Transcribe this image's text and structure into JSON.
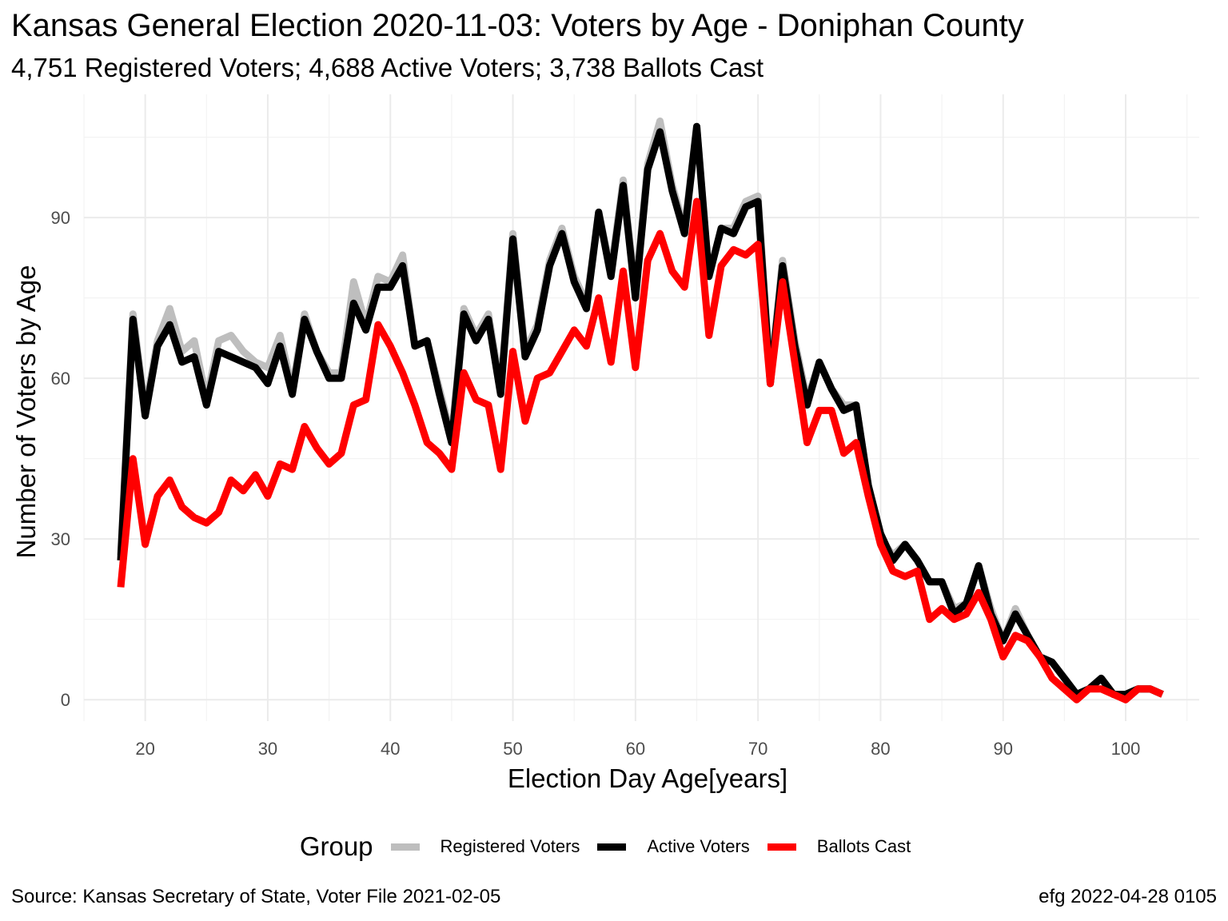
{
  "title": "Kansas General Election 2020-11-03:  Voters by Age - Doniphan County",
  "subtitle": "4,751 Registered Voters; 4,688 Active Voters; 3,738 Ballots Cast",
  "footer": {
    "source": "Source:  Kansas Secretary of State, Voter File  2021-02-05",
    "credit": "efg 2022-04-28 0105"
  },
  "legend": {
    "title": "Group",
    "items": [
      {
        "label": "Registered Voters",
        "color": "#bebebe"
      },
      {
        "label": "Active Voters",
        "color": "#000000"
      },
      {
        "label": "Ballots Cast",
        "color": "#ff0000"
      }
    ]
  },
  "chart_data": {
    "type": "line",
    "xlabel": "Election Day Age[years]",
    "ylabel": "Number of Voters by Age",
    "xlim": [
      15,
      106
    ],
    "ylim": [
      -4,
      113
    ],
    "xticks": [
      20,
      30,
      40,
      50,
      60,
      70,
      80,
      90,
      100
    ],
    "yticks": [
      0,
      30,
      60,
      90
    ],
    "grid": true,
    "legend_position": "bottom",
    "x": [
      18,
      19,
      20,
      21,
      22,
      23,
      24,
      25,
      26,
      27,
      28,
      29,
      30,
      31,
      32,
      33,
      34,
      35,
      36,
      37,
      38,
      39,
      40,
      41,
      42,
      43,
      44,
      45,
      46,
      47,
      48,
      49,
      50,
      51,
      52,
      53,
      54,
      55,
      56,
      57,
      58,
      59,
      60,
      61,
      62,
      63,
      64,
      65,
      66,
      67,
      68,
      69,
      70,
      71,
      72,
      73,
      74,
      75,
      76,
      77,
      78,
      79,
      80,
      81,
      82,
      83,
      84,
      85,
      86,
      87,
      88,
      89,
      90,
      91,
      92,
      93,
      94,
      95,
      96,
      97,
      98,
      99,
      100,
      101,
      102,
      103
    ],
    "series": [
      {
        "name": "Registered Voters",
        "color": "#bebebe",
        "values": [
          27,
          72,
          54,
          67,
          73,
          65,
          67,
          56,
          67,
          68,
          65,
          63,
          62,
          68,
          58,
          72,
          65,
          61,
          61,
          78,
          70,
          79,
          78,
          83,
          66,
          67,
          58,
          49,
          73,
          68,
          72,
          58,
          87,
          65,
          70,
          82,
          88,
          79,
          74,
          91,
          80,
          97,
          76,
          100,
          108,
          96,
          88,
          107,
          79,
          88,
          88,
          93,
          94,
          60,
          82,
          67,
          56,
          63,
          58,
          55,
          55,
          40,
          30,
          27,
          29,
          26,
          22,
          22,
          17,
          18,
          25,
          17,
          11,
          17,
          12,
          8,
          7,
          4,
          1,
          2,
          4,
          1,
          1,
          2,
          2,
          1
        ]
      },
      {
        "name": "Active Voters",
        "color": "#000000",
        "values": [
          26,
          71,
          53,
          66,
          70,
          63,
          64,
          55,
          65,
          64,
          63,
          62,
          59,
          66,
          57,
          71,
          65,
          60,
          60,
          74,
          69,
          77,
          77,
          81,
          66,
          67,
          57,
          48,
          72,
          67,
          71,
          57,
          86,
          64,
          69,
          81,
          87,
          78,
          73,
          91,
          79,
          96,
          75,
          99,
          106,
          95,
          87,
          107,
          79,
          88,
          87,
          92,
          93,
          59,
          81,
          66,
          55,
          63,
          58,
          54,
          55,
          40,
          31,
          26,
          29,
          26,
          22,
          22,
          16,
          18,
          25,
          16,
          11,
          16,
          12,
          8,
          7,
          4,
          1,
          2,
          4,
          1,
          1,
          2,
          2,
          1
        ]
      },
      {
        "name": "Ballots Cast",
        "color": "#ff0000",
        "values": [
          21,
          45,
          29,
          38,
          41,
          36,
          34,
          33,
          35,
          41,
          39,
          42,
          38,
          44,
          43,
          51,
          47,
          44,
          46,
          55,
          56,
          70,
          66,
          61,
          55,
          48,
          46,
          43,
          61,
          56,
          55,
          43,
          65,
          52,
          60,
          61,
          65,
          69,
          66,
          75,
          63,
          80,
          62,
          82,
          87,
          80,
          77,
          93,
          68,
          81,
          84,
          83,
          85,
          59,
          78,
          63,
          48,
          54,
          54,
          46,
          48,
          38,
          29,
          24,
          23,
          24,
          15,
          17,
          15,
          16,
          20,
          15,
          8,
          12,
          11,
          8,
          4,
          2,
          0,
          2,
          2,
          1,
          0,
          2,
          2,
          1
        ]
      }
    ]
  }
}
